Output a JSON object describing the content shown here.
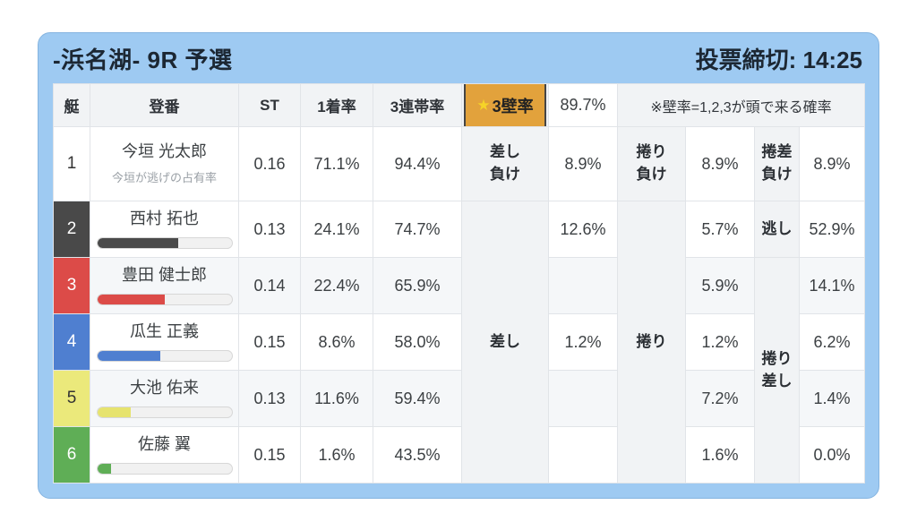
{
  "header": {
    "title": "-浜名湖- 9R 予選",
    "deadline": "投票締切: 14:25"
  },
  "table": {
    "columns": {
      "boat": "艇",
      "reg": "登番",
      "st": "ST",
      "win1": "1着率",
      "top3": "3連帯率"
    },
    "wall": {
      "star": "★",
      "label_text": "3壁率",
      "value": "89.7%",
      "note": "※壁率=1,2,3が頭で来る確率"
    },
    "merged": {
      "sashi": "差し",
      "makuri": "捲り",
      "makurizashi": "捲り\n差し"
    },
    "rows": [
      {
        "boat": "1",
        "name": "今垣 光太郎",
        "subtitle": "今垣が逃げの占有率",
        "st": "0.16",
        "win1": "71.1%",
        "top3": "94.4%",
        "sashi_label": "差し\n負け",
        "sashi": "8.9%",
        "makuri_label": "捲り\n負け",
        "makuri": "8.9%",
        "makurizashi_label": "捲差\n負け",
        "makurizashi": "8.9%"
      },
      {
        "boat": "2",
        "name": "西村 拓也",
        "bar_percent": 60,
        "st": "0.13",
        "win1": "24.1%",
        "top3": "74.7%",
        "sashi": "12.6%",
        "makuri": "5.7%",
        "nogashi_label": "逃し",
        "nogashi": "52.9%"
      },
      {
        "boat": "3",
        "name": "豊田 健士郎",
        "bar_percent": 50,
        "st": "0.14",
        "win1": "22.4%",
        "top3": "65.9%",
        "sashi": "",
        "makuri": "5.9%",
        "makurizashi": "14.1%"
      },
      {
        "boat": "4",
        "name": "瓜生 正義",
        "bar_percent": 47,
        "st": "0.15",
        "win1": "8.6%",
        "top3": "58.0%",
        "sashi": "1.2%",
        "makuri": "1.2%",
        "makurizashi": "6.2%"
      },
      {
        "boat": "5",
        "name": "大池 佑来",
        "bar_percent": 25,
        "st": "0.13",
        "win1": "11.6%",
        "top3": "59.4%",
        "sashi": "",
        "makuri": "7.2%",
        "makurizashi": "1.4%"
      },
      {
        "boat": "6",
        "name": "佐藤 翼",
        "bar_percent": 10,
        "st": "0.15",
        "win1": "1.6%",
        "top3": "43.5%",
        "sashi": "",
        "makuri": "1.6%",
        "makurizashi": "0.0%"
      }
    ]
  },
  "boat_colors": {
    "1": {
      "bg": "#ffffff",
      "text": "#333333",
      "bar": "#cccccc"
    },
    "2": {
      "bg": "#494949",
      "text": "#ffffff",
      "bar": "#4a4a4a"
    },
    "3": {
      "bg": "#dc4b48",
      "text": "#ffffff",
      "bar": "#dc4b48"
    },
    "4": {
      "bg": "#4f7fd0",
      "text": "#ffffff",
      "bar": "#4f7fd0"
    },
    "5": {
      "bg": "#ebe97b",
      "text": "#333333",
      "bar": "#e6e36e"
    },
    "6": {
      "bg": "#5fae56",
      "text": "#ffffff",
      "bar": "#5fae56"
    }
  },
  "colors": {
    "card_background": "#9ecaf2",
    "badge_background": "#e2a23c",
    "badge_star": "#f6d327",
    "header_cell_background": "#f1f3f5",
    "stripe_background": "#f5f7f9"
  }
}
